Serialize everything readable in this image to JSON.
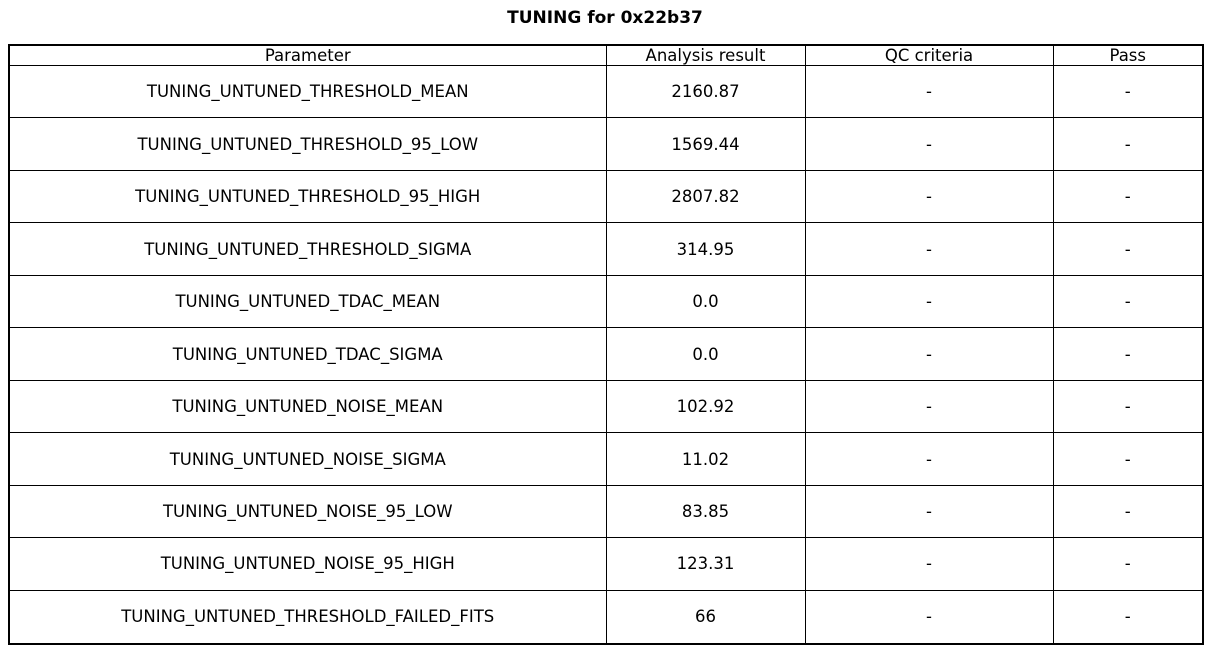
{
  "title": "TUNING for 0x22b37",
  "colors": {
    "background": "#ffffff",
    "border": "#000000",
    "text": "#000000"
  },
  "table": {
    "headers": [
      "Parameter",
      "Analysis result",
      "QC criteria",
      "Pass"
    ],
    "rows": [
      {
        "parameter": "TUNING_UNTUNED_THRESHOLD_MEAN",
        "result": "2160.87",
        "qc": "-",
        "pass": "-"
      },
      {
        "parameter": "TUNING_UNTUNED_THRESHOLD_95_LOW",
        "result": "1569.44",
        "qc": "-",
        "pass": "-"
      },
      {
        "parameter": "TUNING_UNTUNED_THRESHOLD_95_HIGH",
        "result": "2807.82",
        "qc": "-",
        "pass": "-"
      },
      {
        "parameter": "TUNING_UNTUNED_THRESHOLD_SIGMA",
        "result": "314.95",
        "qc": "-",
        "pass": "-"
      },
      {
        "parameter": "TUNING_UNTUNED_TDAC_MEAN",
        "result": "0.0",
        "qc": "-",
        "pass": "-"
      },
      {
        "parameter": "TUNING_UNTUNED_TDAC_SIGMA",
        "result": "0.0",
        "qc": "-",
        "pass": "-"
      },
      {
        "parameter": "TUNING_UNTUNED_NOISE_MEAN",
        "result": "102.92",
        "qc": "-",
        "pass": "-"
      },
      {
        "parameter": "TUNING_UNTUNED_NOISE_SIGMA",
        "result": "11.02",
        "qc": "-",
        "pass": "-"
      },
      {
        "parameter": "TUNING_UNTUNED_NOISE_95_LOW",
        "result": "83.85",
        "qc": "-",
        "pass": "-"
      },
      {
        "parameter": "TUNING_UNTUNED_NOISE_95_HIGH",
        "result": "123.31",
        "qc": "-",
        "pass": "-"
      },
      {
        "parameter": "TUNING_UNTUNED_THRESHOLD_FAILED_FITS",
        "result": "66",
        "qc": "-",
        "pass": "-"
      }
    ]
  },
  "chart_data": {
    "type": "table",
    "title": "TUNING for 0x22b37",
    "columns": [
      "Parameter",
      "Analysis result",
      "QC criteria",
      "Pass"
    ],
    "rows": [
      [
        "TUNING_UNTUNED_THRESHOLD_MEAN",
        "2160.87",
        "-",
        "-"
      ],
      [
        "TUNING_UNTUNED_THRESHOLD_95_LOW",
        "1569.44",
        "-",
        "-"
      ],
      [
        "TUNING_UNTUNED_THRESHOLD_95_HIGH",
        "2807.82",
        "-",
        "-"
      ],
      [
        "TUNING_UNTUNED_THRESHOLD_SIGMA",
        "314.95",
        "-",
        "-"
      ],
      [
        "TUNING_UNTUNED_TDAC_MEAN",
        "0.0",
        "-",
        "-"
      ],
      [
        "TUNING_UNTUNED_TDAC_SIGMA",
        "0.0",
        "-",
        "-"
      ],
      [
        "TUNING_UNTUNED_NOISE_MEAN",
        "102.92",
        "-",
        "-"
      ],
      [
        "TUNING_UNTUNED_NOISE_SIGMA",
        "11.02",
        "-",
        "-"
      ],
      [
        "TUNING_UNTUNED_NOISE_95_LOW",
        "83.85",
        "-",
        "-"
      ],
      [
        "TUNING_UNTUNED_NOISE_95_HIGH",
        "123.31",
        "-",
        "-"
      ],
      [
        "TUNING_UNTUNED_THRESHOLD_FAILED_FITS",
        "66",
        "-",
        "-"
      ]
    ]
  }
}
